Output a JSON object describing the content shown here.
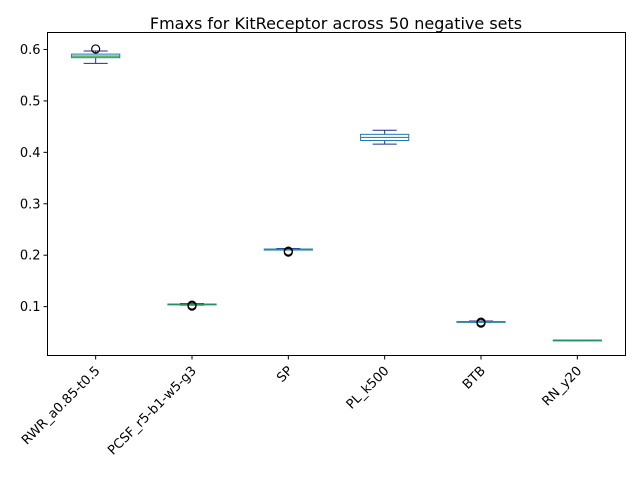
{
  "chart_data": {
    "type": "box",
    "title": "Fmaxs for KitReceptor across 50 negative sets",
    "xlabel": "",
    "ylabel": "",
    "ylim": [
      0.005,
      0.633
    ],
    "yticks": [
      "0.1",
      "0.2",
      "0.3",
      "0.4",
      "0.5",
      "0.6"
    ],
    "ytick_values": [
      0.1,
      0.2,
      0.3,
      0.4,
      0.5,
      0.6
    ],
    "grid": false,
    "categories": [
      "RWR_a0.85-t0.5",
      "PCSF_r5-b1-w5-g3",
      "SP",
      "PL_k500",
      "BTB",
      "RN_y20"
    ],
    "boxes": [
      {
        "whisker_low": 0.573,
        "q1": 0.584,
        "median": 0.587,
        "q3": 0.591,
        "whisker_high": 0.597,
        "outliers": [
          0.601
        ]
      },
      {
        "whisker_low": 0.103,
        "q1": 0.104,
        "median": 0.105,
        "q3": 0.105,
        "whisker_high": 0.106,
        "outliers": [
          0.101,
          0.103
        ]
      },
      {
        "whisker_low": 0.21,
        "q1": 0.21,
        "median": 0.211,
        "q3": 0.212,
        "whisker_high": 0.213,
        "outliers": [
          0.206,
          0.208
        ]
      },
      {
        "whisker_low": 0.416,
        "q1": 0.423,
        "median": 0.429,
        "q3": 0.435,
        "whisker_high": 0.443,
        "outliers": []
      },
      {
        "whisker_low": 0.07,
        "q1": 0.07,
        "median": 0.071,
        "q3": 0.071,
        "whisker_high": 0.072,
        "outliers": [
          0.068,
          0.07
        ]
      },
      {
        "whisker_low": 0.034,
        "q1": 0.034,
        "median": 0.035,
        "q3": 0.035,
        "whisker_high": 0.035,
        "outliers": []
      }
    ],
    "colors": {
      "box": "#1f77b4",
      "median": "#2ca02c",
      "whisker": "#1f2f8c",
      "flier": "#000000"
    }
  }
}
